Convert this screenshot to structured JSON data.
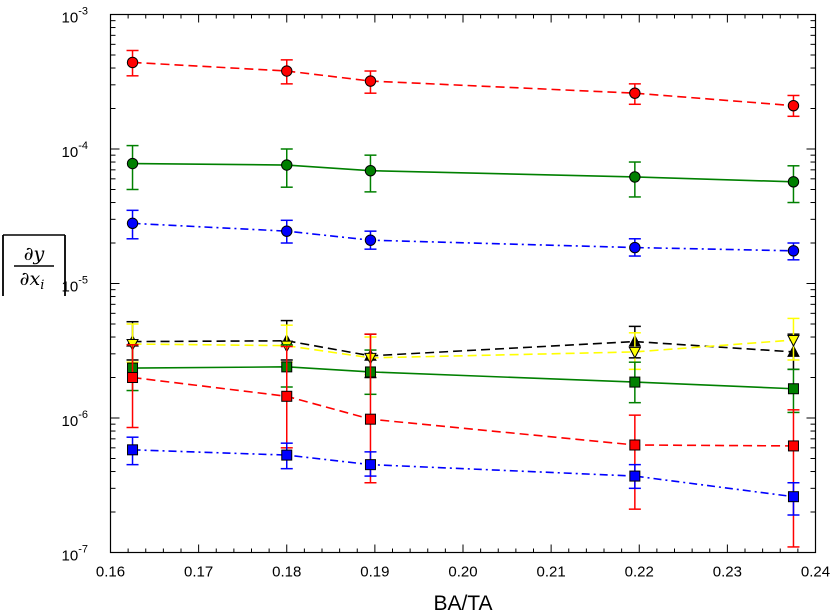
{
  "chart_data": {
    "type": "line",
    "title": "",
    "xlabel": "BA/TA",
    "ylabel": {
      "num_partial": "∂",
      "num_var": "y",
      "den_partial": "∂",
      "den_var": "x",
      "den_sub": "i"
    },
    "xlim": [
      0.16,
      0.24
    ],
    "ylim": [
      1e-07,
      0.001
    ],
    "yscale": "log",
    "grid": false,
    "legend": "none",
    "x": [
      0.1625,
      0.18,
      0.1895,
      0.2195,
      0.2375
    ],
    "xticks": [
      "0.16",
      "0.17",
      "0.18",
      "0.19",
      "0.20",
      "0.21",
      "0.22",
      "0.23",
      "0.24"
    ],
    "yticks": [
      {
        "base": "10",
        "exp": "-7"
      },
      {
        "base": "10",
        "exp": "-6"
      },
      {
        "base": "10",
        "exp": "-5"
      },
      {
        "base": "10",
        "exp": "-4"
      },
      {
        "base": "10",
        "exp": "-3"
      }
    ],
    "series": [
      {
        "marker": "circle",
        "color": "#ff0000",
        "dash": "dashed",
        "values": [
          0.00044,
          0.00038,
          0.00032,
          0.00026,
          0.00021
        ],
        "lower": [
          0.00035,
          0.000305,
          0.00026,
          0.000215,
          0.000175
        ],
        "upper": [
          0.00054,
          0.00046,
          0.00038,
          0.000305,
          0.00025
        ]
      },
      {
        "marker": "circle",
        "color": "#008000",
        "dash": "solid",
        "values": [
          7.8e-05,
          7.6e-05,
          6.9e-05,
          6.2e-05,
          5.7e-05
        ],
        "lower": [
          5e-05,
          5.2e-05,
          4.8e-05,
          4.4e-05,
          4e-05
        ],
        "upper": [
          0.000106,
          0.0001,
          9e-05,
          8e-05,
          7.5e-05
        ]
      },
      {
        "marker": "circle",
        "color": "#0000ff",
        "dash": "dashdot",
        "values": [
          2.8e-05,
          2.45e-05,
          2.1e-05,
          1.85e-05,
          1.75e-05
        ],
        "lower": [
          2.15e-05,
          2e-05,
          1.8e-05,
          1.6e-05,
          1.5e-05
        ],
        "upper": [
          3.5e-05,
          2.95e-05,
          2.45e-05,
          2.15e-05,
          2e-05
        ]
      },
      {
        "marker": "triangle-up",
        "color": "#000000",
        "dash": "dashed",
        "values": [
          3.7e-06,
          3.75e-06,
          2.9e-06,
          3.7e-06,
          3.1e-06
        ],
        "lower": [
          2.7e-06,
          2.7e-06,
          2e-06,
          2.8e-06,
          2.3e-06
        ],
        "upper": [
          5.2e-06,
          5.3e-06,
          4.2e-06,
          4.8e-06,
          4.2e-06
        ]
      },
      {
        "marker": "triangle-down",
        "color": "#ffff00",
        "dash": "dashed",
        "values": [
          3.55e-06,
          3.45e-06,
          2.8e-06,
          3.1e-06,
          3.8e-06
        ],
        "lower": [
          2.6e-06,
          2.6e-06,
          2.1e-06,
          2.3e-06,
          2.7e-06
        ],
        "upper": [
          5e-06,
          4.9e-06,
          4e-06,
          4.3e-06,
          5.5e-06
        ]
      },
      {
        "marker": "square",
        "color": "#008000",
        "dash": "solid",
        "values": [
          2.35e-06,
          2.4e-06,
          2.2e-06,
          1.85e-06,
          1.65e-06
        ],
        "lower": [
          1.6e-06,
          1.7e-06,
          1.5e-06,
          1.3e-06,
          1.1e-06
        ],
        "upper": [
          3.5e-06,
          3.5e-06,
          3.2e-06,
          2.6e-06,
          2.3e-06
        ]
      },
      {
        "marker": "square",
        "color": "#ff0000",
        "dash": "dashed",
        "values": [
          2e-06,
          1.45e-06,
          9.8e-07,
          6.3e-07,
          6.2e-07
        ],
        "lower": [
          8.5e-07,
          6e-07,
          3.3e-07,
          2.1e-07,
          1.1e-07
        ],
        "upper": [
          3.5e-06,
          3.4e-06,
          4.2e-06,
          1.05e-06,
          1.15e-06
        ]
      },
      {
        "marker": "square",
        "color": "#0000ff",
        "dash": "dashdot",
        "values": [
          5.8e-07,
          5.3e-07,
          4.5e-07,
          3.7e-07,
          2.6e-07
        ],
        "lower": [
          4.5e-07,
          4.2e-07,
          3.7e-07,
          3e-07,
          1.9e-07
        ],
        "upper": [
          7.2e-07,
          6.5e-07,
          5.6e-07,
          4.5e-07,
          3.3e-07
        ]
      }
    ]
  }
}
